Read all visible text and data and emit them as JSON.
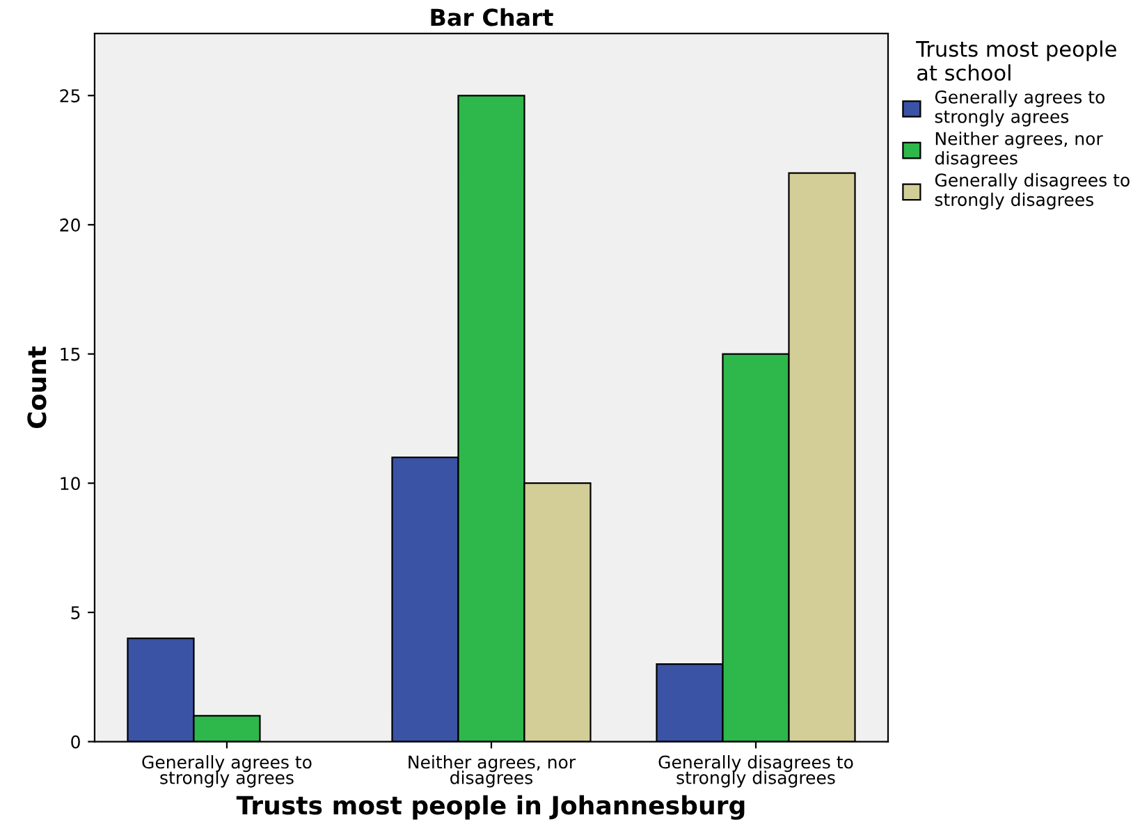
{
  "chart_data": {
    "type": "bar",
    "title": "Bar Chart",
    "xlabel": "Trusts most people in Johannesburg",
    "ylabel": "Count",
    "legend_title": "Trusts most people\nat school",
    "categories": [
      "Generally agrees to\nstrongly agrees",
      "Neither agrees, nor\ndisagrees",
      "Generally disagrees to\nstrongly disagrees"
    ],
    "series": [
      {
        "name": "Generally agrees to\nstrongly agrees",
        "color": "#3a53a4",
        "values": [
          4,
          11,
          3
        ]
      },
      {
        "name": "Neither agrees, nor\ndisagrees",
        "color": "#2eb84b",
        "values": [
          1,
          25,
          15
        ]
      },
      {
        "name": "Generally disagrees to\nstrongly disagrees",
        "color": "#d3ce97",
        "values": [
          null,
          10,
          22
        ]
      }
    ],
    "ylim": [
      0,
      27.4
    ],
    "yticks": [
      0,
      5,
      10,
      15,
      20,
      25
    ],
    "grid": false,
    "legend": "right"
  }
}
